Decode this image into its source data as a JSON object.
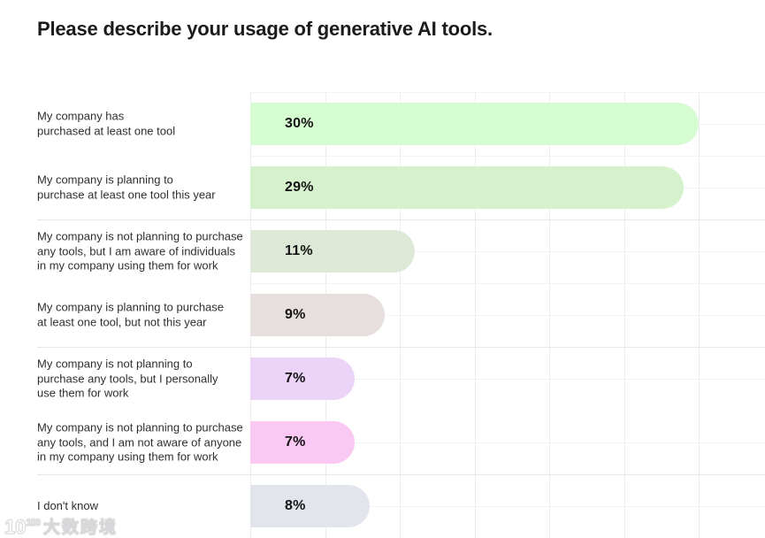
{
  "title": "Please describe your usage of generative AI tools.",
  "chart_data": {
    "type": "bar",
    "orientation": "horizontal",
    "title": "Please describe your usage of generative AI tools.",
    "xlabel": "",
    "ylabel": "",
    "xlim": [
      0,
      34.5
    ],
    "grid": true,
    "x_gridline_step_percent": 5,
    "legend": "none",
    "categories": [
      "My company has\npurchased at least one tool",
      "My company is planning to\npurchase at least one tool this year",
      "My company is not planning to purchase\nany tools, but I am aware of individuals\nin my company using them for work",
      "My company is planning to purchase\nat least one tool, but not this year",
      "My company is not planning to\npurchase any tools, but I personally\nuse them for work",
      "My company is not planning to purchase\nany tools, and I am not aware of anyone\nin my company using them for work",
      "I don't know"
    ],
    "values": [
      30,
      29,
      11,
      9,
      7,
      7,
      8
    ],
    "value_labels": [
      "30%",
      "29%",
      "11%",
      "9%",
      "7%",
      "7%",
      "8%"
    ],
    "bar_colors": [
      "#d6fdd2",
      "#d6f2cd",
      "#dde8d6",
      "#e7dfde",
      "#ebd4f7",
      "#f9c8f3",
      "#e2e5ec"
    ],
    "rows": [
      {
        "label": "My company has\npurchased at least one tool",
        "value": 30,
        "value_label": "30%",
        "color": "#d6fdd2"
      },
      {
        "label": "My company is planning to\npurchase at least one tool this year",
        "value": 29,
        "value_label": "29%",
        "color": "#d6f2cd"
      },
      {
        "label": "My company is not planning to purchase\nany tools, but I am aware of individuals\nin my company using them for work",
        "value": 11,
        "value_label": "11%",
        "color": "#dde8d6"
      },
      {
        "label": "My company is planning to purchase\nat least one tool, but not this year",
        "value": 9,
        "value_label": "9%",
        "color": "#e7dfde"
      },
      {
        "label": "My company is not planning to\npurchase any tools, but I personally\nuse them for work",
        "value": 7,
        "value_label": "7%",
        "color": "#ebd4f7"
      },
      {
        "label": "My company is not planning to purchase\nany tools, and I am not aware of anyone\nin my company using them for work",
        "value": 7,
        "value_label": "7%",
        "color": "#f9c8f3"
      },
      {
        "label": "I don't know",
        "value": 8,
        "value_label": "8%",
        "color": "#e2e5ec"
      }
    ]
  },
  "watermark": {
    "logo_base": "10",
    "logo_exponent": "100",
    "brand_text": "大数跨境"
  }
}
